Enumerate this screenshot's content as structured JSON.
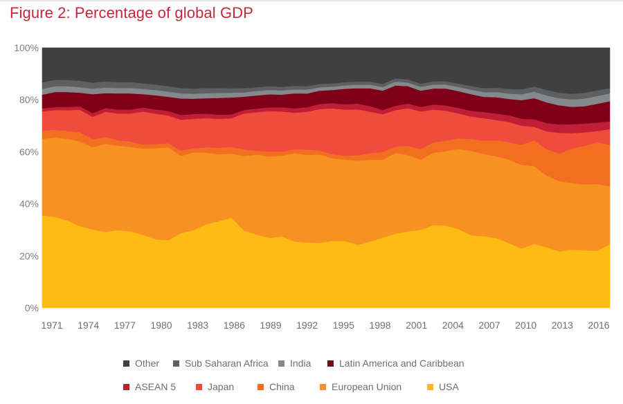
{
  "chart_data": {
    "type": "area",
    "stacked": true,
    "normalized": true,
    "title": "Figure 2: Percentage of global GDP",
    "xlabel": "",
    "ylabel": "",
    "ylim": [
      0,
      100
    ],
    "y_ticks": [
      "0%",
      "20%",
      "40%",
      "60%",
      "80%",
      "100%"
    ],
    "x_ticks": [
      "1971",
      "1974",
      "1977",
      "1980",
      "1983",
      "1986",
      "1989",
      "1992",
      "1995",
      "1998",
      "2001",
      "2004",
      "2007",
      "2010",
      "2013",
      "2016"
    ],
    "grid": false,
    "legend_position": "bottom",
    "x": [
      1971,
      1972,
      1973,
      1974,
      1975,
      1976,
      1977,
      1978,
      1979,
      1980,
      1981,
      1982,
      1983,
      1984,
      1985,
      1986,
      1987,
      1988,
      1989,
      1990,
      1991,
      1992,
      1993,
      1994,
      1995,
      1996,
      1997,
      1998,
      1999,
      2000,
      2001,
      2002,
      2003,
      2004,
      2005,
      2006,
      2007,
      2008,
      2009,
      2010,
      2011,
      2012,
      2013,
      2014,
      2015,
      2016
    ],
    "series": [
      {
        "name": "USA",
        "color": "#fdbb13",
        "values": [
          35.5,
          35,
          33.5,
          31,
          29.5,
          28.5,
          29,
          28.5,
          27.5,
          26,
          25.5,
          28,
          29,
          31.5,
          33,
          34.5,
          30,
          28.5,
          27,
          27.5,
          25.5,
          25,
          25,
          25.5,
          25.5,
          24,
          25.5,
          27,
          28.5,
          29.5,
          30,
          31.5,
          31.5,
          30,
          27.5,
          27,
          26,
          24,
          22,
          23.5,
          22,
          20.5,
          21,
          21,
          21,
          24
        ]
      },
      {
        "name": "European Union",
        "color": "#f79122",
        "values": [
          29.5,
          30.5,
          31.5,
          32,
          31,
          33,
          31.5,
          31.5,
          32.5,
          34.5,
          35,
          29,
          29,
          27,
          25.5,
          24.5,
          29,
          31,
          31.5,
          31,
          34,
          33.5,
          34,
          31.5,
          31,
          32,
          31.5,
          30,
          31,
          29.5,
          27,
          27.5,
          28.5,
          30.5,
          32,
          31,
          30.5,
          31,
          31,
          28.5,
          26,
          25.5,
          24,
          24,
          24.5,
          22
        ]
      },
      {
        "name": "China",
        "color": "#f26f21",
        "values": [
          3,
          3,
          3,
          3.5,
          3,
          2.5,
          2,
          2,
          1.5,
          1.5,
          1.5,
          2,
          1.5,
          2,
          2.5,
          2.5,
          2.5,
          1.5,
          2,
          1.5,
          1.5,
          2,
          1.5,
          1.5,
          1.5,
          2,
          2.5,
          3,
          2.5,
          3.5,
          4,
          4,
          4,
          4,
          4.5,
          5,
          6,
          6.5,
          7.5,
          9.5,
          9.5,
          10,
          12.5,
          14,
          15.5,
          15.5
        ]
      },
      {
        "name": "Japan",
        "color": "#f04c3e",
        "values": [
          7.5,
          7.5,
          8,
          8.5,
          8.5,
          9.5,
          10,
          10.5,
          12.5,
          11.5,
          10.5,
          11.5,
          11,
          11,
          11,
          11,
          14,
          15,
          15.5,
          15.5,
          14,
          14.5,
          16,
          17.5,
          17.5,
          17.5,
          16,
          14.5,
          14,
          14.5,
          14.5,
          12.5,
          11.5,
          9.5,
          8.5,
          8.5,
          7.5,
          7.5,
          7,
          5,
          6.5,
          7.5,
          5.5,
          5,
          4,
          6
        ]
      },
      {
        "name": "ASEAN 5",
        "color": "#bf1e34",
        "values": [
          1.2,
          1.2,
          1.3,
          1.3,
          1.4,
          1.4,
          1.5,
          1.5,
          1.5,
          1.6,
          1.7,
          1.8,
          1.8,
          1.7,
          1.6,
          1.5,
          1.4,
          1.4,
          1.5,
          1.6,
          1.7,
          1.8,
          1.9,
          2,
          2.1,
          2.2,
          2.1,
          1.6,
          1.7,
          1.8,
          1.8,
          1.9,
          2,
          2.1,
          2.2,
          2.3,
          2.4,
          2.5,
          2.6,
          2.8,
          3,
          3.1,
          3.2,
          3.2,
          3.1,
          3
        ]
      },
      {
        "name": "Latin America and Caribbean",
        "color": "#7e0019",
        "values": [
          5.3,
          5.8,
          5.7,
          5.2,
          7.1,
          5.6,
          6,
          6,
          5,
          5.4,
          5.3,
          6.2,
          5.7,
          5.8,
          6.4,
          6.5,
          5.1,
          5.1,
          5,
          4.9,
          5.8,
          5.2,
          5.1,
          5,
          5.9,
          5.8,
          6.9,
          7.4,
          7.8,
          6.7,
          6.2,
          6.1,
          6.5,
          6.4,
          6.3,
          5.7,
          6.1,
          6,
          6.9,
          7.7,
          7.5,
          6.9,
          6.3,
          6.3,
          6.9,
          7.5
        ]
      },
      {
        "name": "India",
        "color": "#86898c",
        "values": [
          2.2,
          2.2,
          2.2,
          2.1,
          2.1,
          2.1,
          2,
          2,
          2,
          2,
          2,
          1.9,
          1.9,
          1.9,
          1.9,
          1.8,
          1.7,
          1.7,
          1.7,
          1.6,
          1.5,
          1.5,
          1.3,
          1.3,
          1.3,
          1.4,
          1.4,
          1.4,
          1.5,
          1.4,
          1.5,
          1.5,
          1.5,
          1.6,
          1.7,
          1.8,
          1.9,
          2,
          2.2,
          2.4,
          2.5,
          2.6,
          2.7,
          2.8,
          2.9,
          3
        ]
      },
      {
        "name": "Sub Saharan Africa",
        "color": "#5d5f61",
        "values": [
          2.5,
          2.5,
          2.4,
          2.4,
          2.3,
          2.3,
          2.2,
          2.2,
          2.1,
          2.1,
          2,
          2,
          1.9,
          1.9,
          1.8,
          1.7,
          1.6,
          1.5,
          1.5,
          1.4,
          1.4,
          1.3,
          1.3,
          1.2,
          1.2,
          1.2,
          1.2,
          1.2,
          1.2,
          1.2,
          1.2,
          1.2,
          1.3,
          1.3,
          1.4,
          1.5,
          1.6,
          1.7,
          1.8,
          1.9,
          2,
          2,
          2,
          2.1,
          2.1,
          2
        ]
      },
      {
        "name": "Other",
        "color": "#404041",
        "values": [
          13.3,
          12.3,
          12.4,
          12.5,
          13.1,
          12.6,
          12.8,
          12.8,
          13.4,
          13.9,
          14.5,
          15.1,
          15.2,
          15.2,
          15.4,
          15.5,
          15.7,
          15.3,
          14.8,
          15,
          14.6,
          14.7,
          13.9,
          13.6,
          13.1,
          12.8,
          13,
          13.9,
          11.8,
          12.2,
          13.8,
          12.8,
          12.8,
          13.6,
          14.5,
          15.2,
          14.9,
          15.3,
          15.4,
          14.2,
          15.3,
          16.3,
          16.6,
          16.4,
          15.6,
          15.2
        ]
      }
    ]
  },
  "legend": {
    "row1": [
      {
        "label": "Other",
        "color": "#404041"
      },
      {
        "label": "Sub Saharan Africa",
        "color": "#5d5f61"
      },
      {
        "label": "India",
        "color": "#86898c"
      },
      {
        "label": "Latin America and Caribbean",
        "color": "#7e0019"
      }
    ],
    "row2": [
      {
        "label": "ASEAN 5",
        "color": "#bf1e34"
      },
      {
        "label": "Japan",
        "color": "#f04c3e"
      },
      {
        "label": "China",
        "color": "#f26f21"
      },
      {
        "label": "European Union",
        "color": "#f79122"
      },
      {
        "label": "USA",
        "color": "#fdbb13"
      }
    ]
  }
}
